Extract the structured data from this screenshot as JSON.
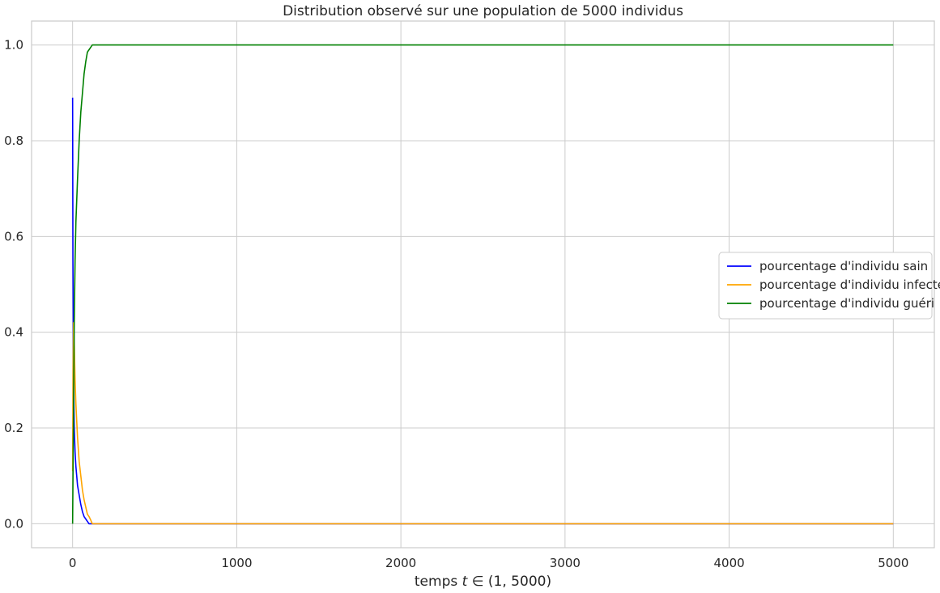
{
  "chart_data": {
    "type": "line",
    "title": "Distribution observé sur une population de 5000 individus",
    "xlabel": "temps t ∈ (1, 5000)",
    "ylabel": "",
    "xlim": [
      -250,
      5250
    ],
    "ylim": [
      -0.05,
      1.05
    ],
    "x_ticks": [
      0,
      1000,
      2000,
      3000,
      4000,
      5000
    ],
    "y_ticks": [
      0.0,
      0.2,
      0.4,
      0.6,
      0.8,
      1.0
    ],
    "x_tick_labels": [
      "0",
      "1000",
      "2000",
      "3000",
      "4000",
      "5000"
    ],
    "y_tick_labels": [
      "0.0",
      "0.2",
      "0.4",
      "0.6",
      "0.8",
      "1.0"
    ],
    "grid": true,
    "legend_position": "center-right",
    "series": [
      {
        "name": "pourcentage d'individu sain",
        "color": "#0000ff",
        "x": [
          0,
          2,
          5,
          8,
          10,
          15,
          20,
          25,
          30,
          40,
          50,
          60,
          70,
          80,
          90,
          100,
          5000
        ],
        "y": [
          0.89,
          0.55,
          0.35,
          0.25,
          0.2,
          0.15,
          0.12,
          0.1,
          0.08,
          0.06,
          0.04,
          0.025,
          0.015,
          0.01,
          0.005,
          0.0,
          0.0
        ]
      },
      {
        "name": "pourcentage d'individu infecté",
        "color": "#ffa500",
        "x": [
          0,
          3,
          6,
          10,
          15,
          20,
          30,
          40,
          50,
          60,
          70,
          80,
          90,
          100,
          110,
          120,
          5000
        ],
        "y": [
          0.11,
          0.32,
          0.42,
          0.38,
          0.3,
          0.25,
          0.18,
          0.13,
          0.1,
          0.07,
          0.05,
          0.035,
          0.02,
          0.015,
          0.008,
          0.0,
          0.0
        ]
      },
      {
        "name": "pourcentage d'individu guéri",
        "color": "#008000",
        "x": [
          0,
          3,
          6,
          10,
          15,
          20,
          30,
          40,
          50,
          60,
          70,
          80,
          90,
          100,
          110,
          120,
          5000
        ],
        "y": [
          0.0,
          0.13,
          0.25,
          0.42,
          0.55,
          0.63,
          0.72,
          0.8,
          0.86,
          0.9,
          0.94,
          0.965,
          0.985,
          0.99,
          0.995,
          1.0,
          1.0
        ]
      }
    ]
  }
}
